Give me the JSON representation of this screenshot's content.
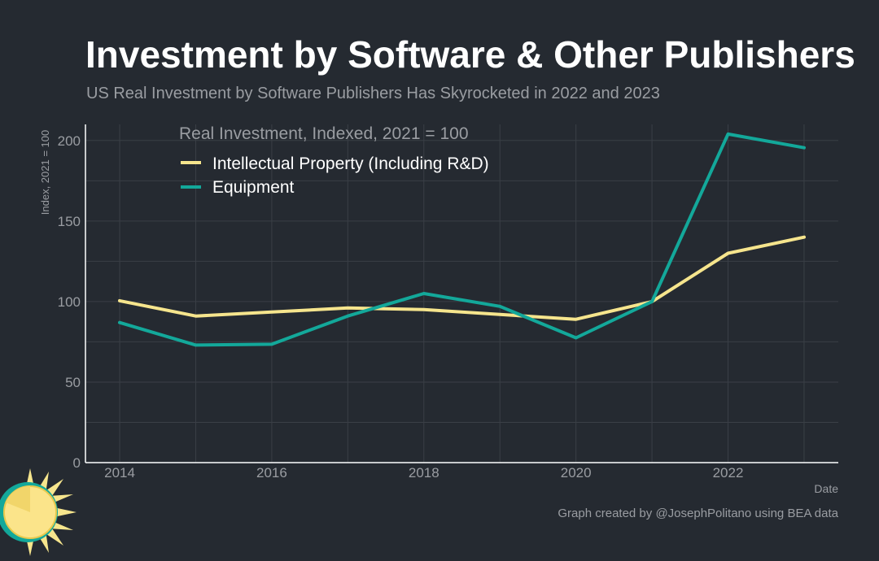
{
  "header": {
    "title": "Investment by Software & Other Publishers",
    "subtitle": "US Real Investment by Software Publishers Has Skyrocketed in 2022 and 2023"
  },
  "footer": {
    "caption": "Graph created by @JosephPolitano using BEA data"
  },
  "colors": {
    "background": "#252a31",
    "grid": "#3a3f46",
    "axis": "#ffffff",
    "series_ip": "#f6e58d",
    "series_equipment": "#13a89a"
  },
  "chart_data": {
    "type": "line",
    "title": "Real Investment, Indexed, 2021 = 100",
    "xlabel": "Date",
    "ylabel": "Index, 2021 = 100",
    "x": [
      2014,
      2015,
      2016,
      2017,
      2018,
      2019,
      2020,
      2021,
      2022,
      2023
    ],
    "xlim": [
      2013.55,
      2023.45
    ],
    "ylim": [
      0,
      210
    ],
    "xticks": [
      2014,
      2016,
      2018,
      2020,
      2022
    ],
    "yticks": [
      0,
      50,
      100,
      150,
      200
    ],
    "grid": true,
    "legend_position": "top-left",
    "series": [
      {
        "name": "Intellectual Property (Including R&D)",
        "color": "#f6e58d",
        "values": [
          100.5,
          91,
          93.5,
          96,
          95,
          92,
          89,
          100,
          130,
          140
        ]
      },
      {
        "name": "Equipment",
        "color": "#13a89a",
        "values": [
          87,
          73,
          73.5,
          91,
          105,
          97,
          77.5,
          100,
          204,
          195.5
        ]
      }
    ]
  }
}
